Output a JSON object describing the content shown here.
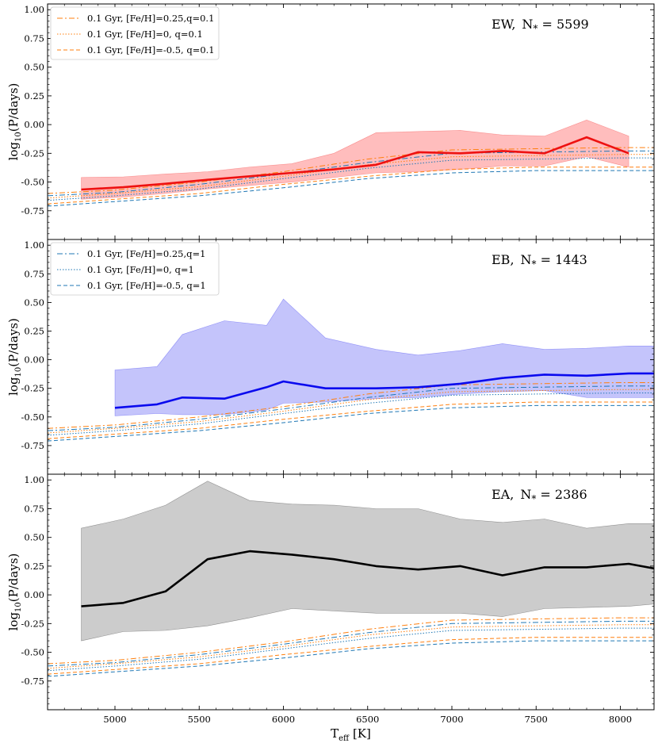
{
  "chart_data": [
    {
      "type": "line",
      "panel": "EW",
      "label": "EW",
      "count_label": "N",
      "count_sub": "*",
      "count_value": "5599",
      "ylabel": "log",
      "ylabel_sub": "10",
      "ylabel_rest": "(P/days)",
      "xlim": [
        4600,
        8200
      ],
      "ylim": [
        -1.0,
        1.05
      ],
      "yticks": [
        "1.00",
        "0.75",
        "0.50",
        "0.25",
        "0.00",
        "-0.25",
        "-0.50",
        "-0.75"
      ],
      "color": "#ee1111",
      "band_color": "#ffbdbd",
      "main_x": [
        4800,
        5050,
        5300,
        5550,
        5800,
        6050,
        6300,
        6550,
        6800,
        7050,
        7300,
        7550,
        7800,
        8050
      ],
      "main_y": [
        -0.565,
        -0.545,
        -0.515,
        -0.48,
        -0.45,
        -0.42,
        -0.39,
        -0.35,
        -0.24,
        -0.25,
        -0.23,
        -0.25,
        -0.11,
        -0.25
      ],
      "band_upper": [
        -0.46,
        -0.455,
        -0.43,
        -0.41,
        -0.37,
        -0.34,
        -0.25,
        -0.07,
        -0.06,
        -0.05,
        -0.09,
        -0.1,
        0.04,
        -0.1
      ],
      "band_lower": [
        -0.65,
        -0.63,
        -0.6,
        -0.56,
        -0.53,
        -0.5,
        -0.46,
        -0.42,
        -0.41,
        -0.39,
        -0.36,
        -0.36,
        -0.28,
        -0.37
      ],
      "legend": [
        {
          "text": "0.1 Gyr, [Fe/H]=0.25,q=0.1",
          "color": "#ff7f0e",
          "dash": "7,3,2,3"
        },
        {
          "text": "0.1 Gyr, [Fe/H]=0, q=0.1",
          "color": "#ff7f0e",
          "dash": "1.5,2"
        },
        {
          "text": "0.1 Gyr, [Fe/H]=-0.5, q=0.1",
          "color": "#ff7f0e",
          "dash": "5,3"
        }
      ]
    },
    {
      "type": "line",
      "panel": "EB",
      "label": "EB",
      "count_label": "N",
      "count_sub": "*",
      "count_value": "1443",
      "ylabel": "log",
      "ylabel_sub": "10",
      "ylabel_rest": "(P/days)",
      "xlim": [
        4600,
        8200
      ],
      "ylim": [
        -1.0,
        1.05
      ],
      "yticks": [
        "1.00",
        "0.75",
        "0.50",
        "0.25",
        "0.00",
        "-0.25",
        "-0.50",
        "-0.75"
      ],
      "color": "#0a0aee",
      "band_color": "#c4c4fb",
      "main_x": [
        5000,
        5250,
        5400,
        5650,
        5900,
        6000,
        6250,
        6550,
        6800,
        7050,
        7300,
        7550,
        7800,
        8050,
        8200
      ],
      "main_y": [
        -0.42,
        -0.39,
        -0.33,
        -0.34,
        -0.24,
        -0.19,
        -0.25,
        -0.25,
        -0.24,
        -0.21,
        -0.16,
        -0.13,
        -0.14,
        -0.12,
        -0.12
      ],
      "band_upper": [
        -0.09,
        -0.06,
        0.22,
        0.34,
        0.3,
        0.53,
        0.19,
        0.09,
        0.04,
        0.08,
        0.14,
        0.09,
        0.1,
        0.12,
        0.12
      ],
      "band_lower": [
        -0.49,
        -0.47,
        -0.48,
        -0.48,
        -0.44,
        -0.38,
        -0.37,
        -0.34,
        -0.33,
        -0.3,
        -0.28,
        -0.27,
        -0.33,
        -0.33,
        -0.33
      ],
      "legend": [
        {
          "text": "0.1 Gyr, [Fe/H]=0.25,q=1",
          "color": "#1f77b4",
          "dash": "7,3,2,3"
        },
        {
          "text": "0.1 Gyr, [Fe/H]=0, q=1",
          "color": "#1f77b4",
          "dash": "1.5,2"
        },
        {
          "text": "0.1 Gyr, [Fe/H]=-0.5, q=1",
          "color": "#1f77b4",
          "dash": "5,3"
        }
      ]
    },
    {
      "type": "line",
      "panel": "EA",
      "label": "EA",
      "count_label": "N",
      "count_sub": "*",
      "count_value": "2386",
      "ylabel": "log",
      "ylabel_sub": "10",
      "ylabel_rest": "(P/days)",
      "xlabel": "T",
      "xlabel_sub": "eff",
      "xlabel_rest": "[K]",
      "xticks": [
        "5000",
        "5500",
        "6000",
        "6500",
        "7000",
        "7500",
        "8000"
      ],
      "xlim": [
        4600,
        8200
      ],
      "ylim": [
        -1.0,
        1.05
      ],
      "yticks": [
        "1.00",
        "0.75",
        "0.50",
        "0.25",
        "0.00",
        "-0.25",
        "-0.50",
        "-0.75"
      ],
      "color": "#000000",
      "band_color": "#cccccc",
      "main_x": [
        4800,
        5050,
        5300,
        5550,
        5800,
        6050,
        6300,
        6550,
        6800,
        7050,
        7300,
        7550,
        7800,
        8050,
        8200
      ],
      "main_y": [
        -0.1,
        -0.07,
        0.03,
        0.31,
        0.38,
        0.35,
        0.31,
        0.25,
        0.22,
        0.25,
        0.17,
        0.24,
        0.24,
        0.27,
        0.23
      ],
      "band_upper": [
        0.58,
        0.66,
        0.78,
        0.99,
        0.82,
        0.79,
        0.78,
        0.75,
        0.75,
        0.66,
        0.63,
        0.66,
        0.58,
        0.62,
        0.62
      ],
      "band_lower": [
        -0.4,
        -0.32,
        -0.31,
        -0.27,
        -0.2,
        -0.12,
        -0.14,
        -0.16,
        -0.16,
        -0.16,
        -0.19,
        -0.12,
        -0.11,
        -0.1,
        -0.08
      ]
    }
  ],
  "model_tracks": [
    {
      "name": "FeH 0.25 q=0.1",
      "color": "#ff7f0e",
      "dash": "7,3,2,3",
      "x": [
        4600,
        5000,
        5500,
        6000,
        6500,
        7000,
        7500,
        8000,
        8200
      ],
      "y": [
        -0.6,
        -0.57,
        -0.5,
        -0.41,
        -0.3,
        -0.22,
        -0.21,
        -0.2,
        -0.2
      ]
    },
    {
      "name": "FeH 0 q=0.1",
      "color": "#ff7f0e",
      "dash": "1.5,2",
      "x": [
        4600,
        5000,
        5500,
        6000,
        6500,
        7000,
        7500,
        8000,
        8200
      ],
      "y": [
        -0.64,
        -0.6,
        -0.54,
        -0.45,
        -0.35,
        -0.28,
        -0.27,
        -0.26,
        -0.26
      ]
    },
    {
      "name": "FeH -0.5 q=0.1",
      "color": "#ff7f0e",
      "dash": "5,3",
      "x": [
        4600,
        5000,
        5500,
        6000,
        6500,
        7000,
        7500,
        8000,
        8200
      ],
      "y": [
        -0.69,
        -0.65,
        -0.6,
        -0.52,
        -0.45,
        -0.39,
        -0.37,
        -0.37,
        -0.37
      ]
    },
    {
      "name": "FeH 0.25 q=1",
      "color": "#1f77b4",
      "dash": "7,3,2,3",
      "x": [
        4600,
        5000,
        5500,
        6000,
        6500,
        7000,
        7500,
        8000,
        8200
      ],
      "y": [
        -0.62,
        -0.59,
        -0.52,
        -0.43,
        -0.33,
        -0.25,
        -0.24,
        -0.23,
        -0.23
      ]
    },
    {
      "name": "FeH 0 q=1",
      "color": "#1f77b4",
      "dash": "1.5,2",
      "x": [
        4600,
        5000,
        5500,
        6000,
        6500,
        7000,
        7500,
        8000,
        8200
      ],
      "y": [
        -0.66,
        -0.62,
        -0.56,
        -0.47,
        -0.38,
        -0.31,
        -0.3,
        -0.29,
        -0.29
      ]
    },
    {
      "name": "FeH -0.5 q=1",
      "color": "#1f77b4",
      "dash": "5,3",
      "x": [
        4600,
        5000,
        5500,
        6000,
        6500,
        7000,
        7500,
        8000,
        8200
      ],
      "y": [
        -0.71,
        -0.67,
        -0.62,
        -0.55,
        -0.47,
        -0.42,
        -0.4,
        -0.4,
        -0.4
      ]
    }
  ]
}
